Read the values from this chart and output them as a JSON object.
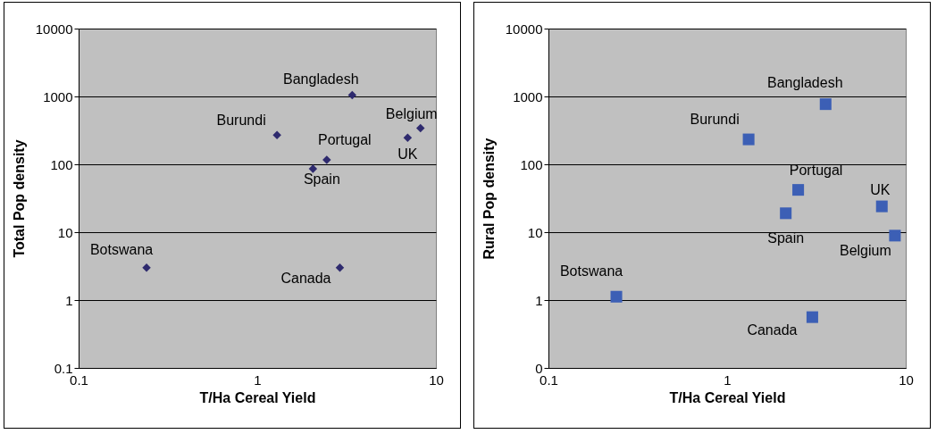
{
  "chart_data": [
    {
      "type": "scatter",
      "xlabel": "T/Ha Cereal Yield",
      "ylabel": "Total Pop density",
      "log": "xy",
      "grid": "y",
      "marker": "diamond",
      "x": [
        0.24,
        1.29,
        3.4,
        2.45,
        2.05,
        6.95,
        8.2,
        2.9
      ],
      "series": [
        {
          "color": "#2e2a6e",
          "values": [
            3.0,
            270,
            1050,
            116,
            86,
            247,
            340,
            3.0
          ]
        }
      ],
      "xlim": [
        0.1,
        10
      ],
      "xticks": [
        0.1,
        1,
        10
      ],
      "ylim": [
        0.1,
        10000
      ],
      "yticks": [
        0.1,
        1,
        10,
        100,
        1000,
        10000
      ],
      "annotations": [
        {
          "text": "Botswana",
          "x": 0.24,
          "y": 3.0
        },
        {
          "text": "Burundi",
          "x": 1.29,
          "y": 270
        },
        {
          "text": "Bangladesh",
          "x": 3.4,
          "y": 1050
        },
        {
          "text": "Portugal",
          "x": 2.45,
          "y": 116
        },
        {
          "text": "Spain",
          "x": 2.05,
          "y": 86
        },
        {
          "text": "UK",
          "x": 6.95,
          "y": 247
        },
        {
          "text": "Belgium",
          "x": 8.2,
          "y": 340
        },
        {
          "text": "Canada",
          "x": 2.9,
          "y": 3.0
        }
      ]
    },
    {
      "type": "scatter",
      "xlabel": "T/Ha Cereal Yield",
      "ylabel": "Rural Pop density",
      "log": "xy",
      "grid": "y",
      "marker": "square",
      "x": [
        0.24,
        1.32,
        3.56,
        2.5,
        2.13,
        7.35,
        8.7,
        3.0
      ],
      "series": [
        {
          "color": "#3c5fb5",
          "values": [
            1.12,
            233,
            770,
            42,
            19,
            24,
            8.9,
            0.56
          ]
        }
      ],
      "xlim": [
        0.1,
        10
      ],
      "xticks": [
        0.1,
        1,
        10
      ],
      "ylim": [
        0.1,
        10000
      ],
      "yticks": [
        {
          "value": 0.1,
          "label": "0"
        },
        1,
        10,
        100,
        1000,
        10000
      ],
      "annotations": [
        {
          "text": "Botswana",
          "x": 0.24,
          "y": 1.12
        },
        {
          "text": "Burundi",
          "x": 1.32,
          "y": 233
        },
        {
          "text": "Bangladesh",
          "x": 3.56,
          "y": 770
        },
        {
          "text": "Portugal",
          "x": 2.5,
          "y": 42
        },
        {
          "text": "Spain",
          "x": 2.13,
          "y": 19
        },
        {
          "text": "UK",
          "x": 7.35,
          "y": 24
        },
        {
          "text": "Belgium",
          "x": 8.7,
          "y": 8.9
        },
        {
          "text": "Canada",
          "x": 3.0,
          "y": 0.56
        }
      ]
    }
  ]
}
